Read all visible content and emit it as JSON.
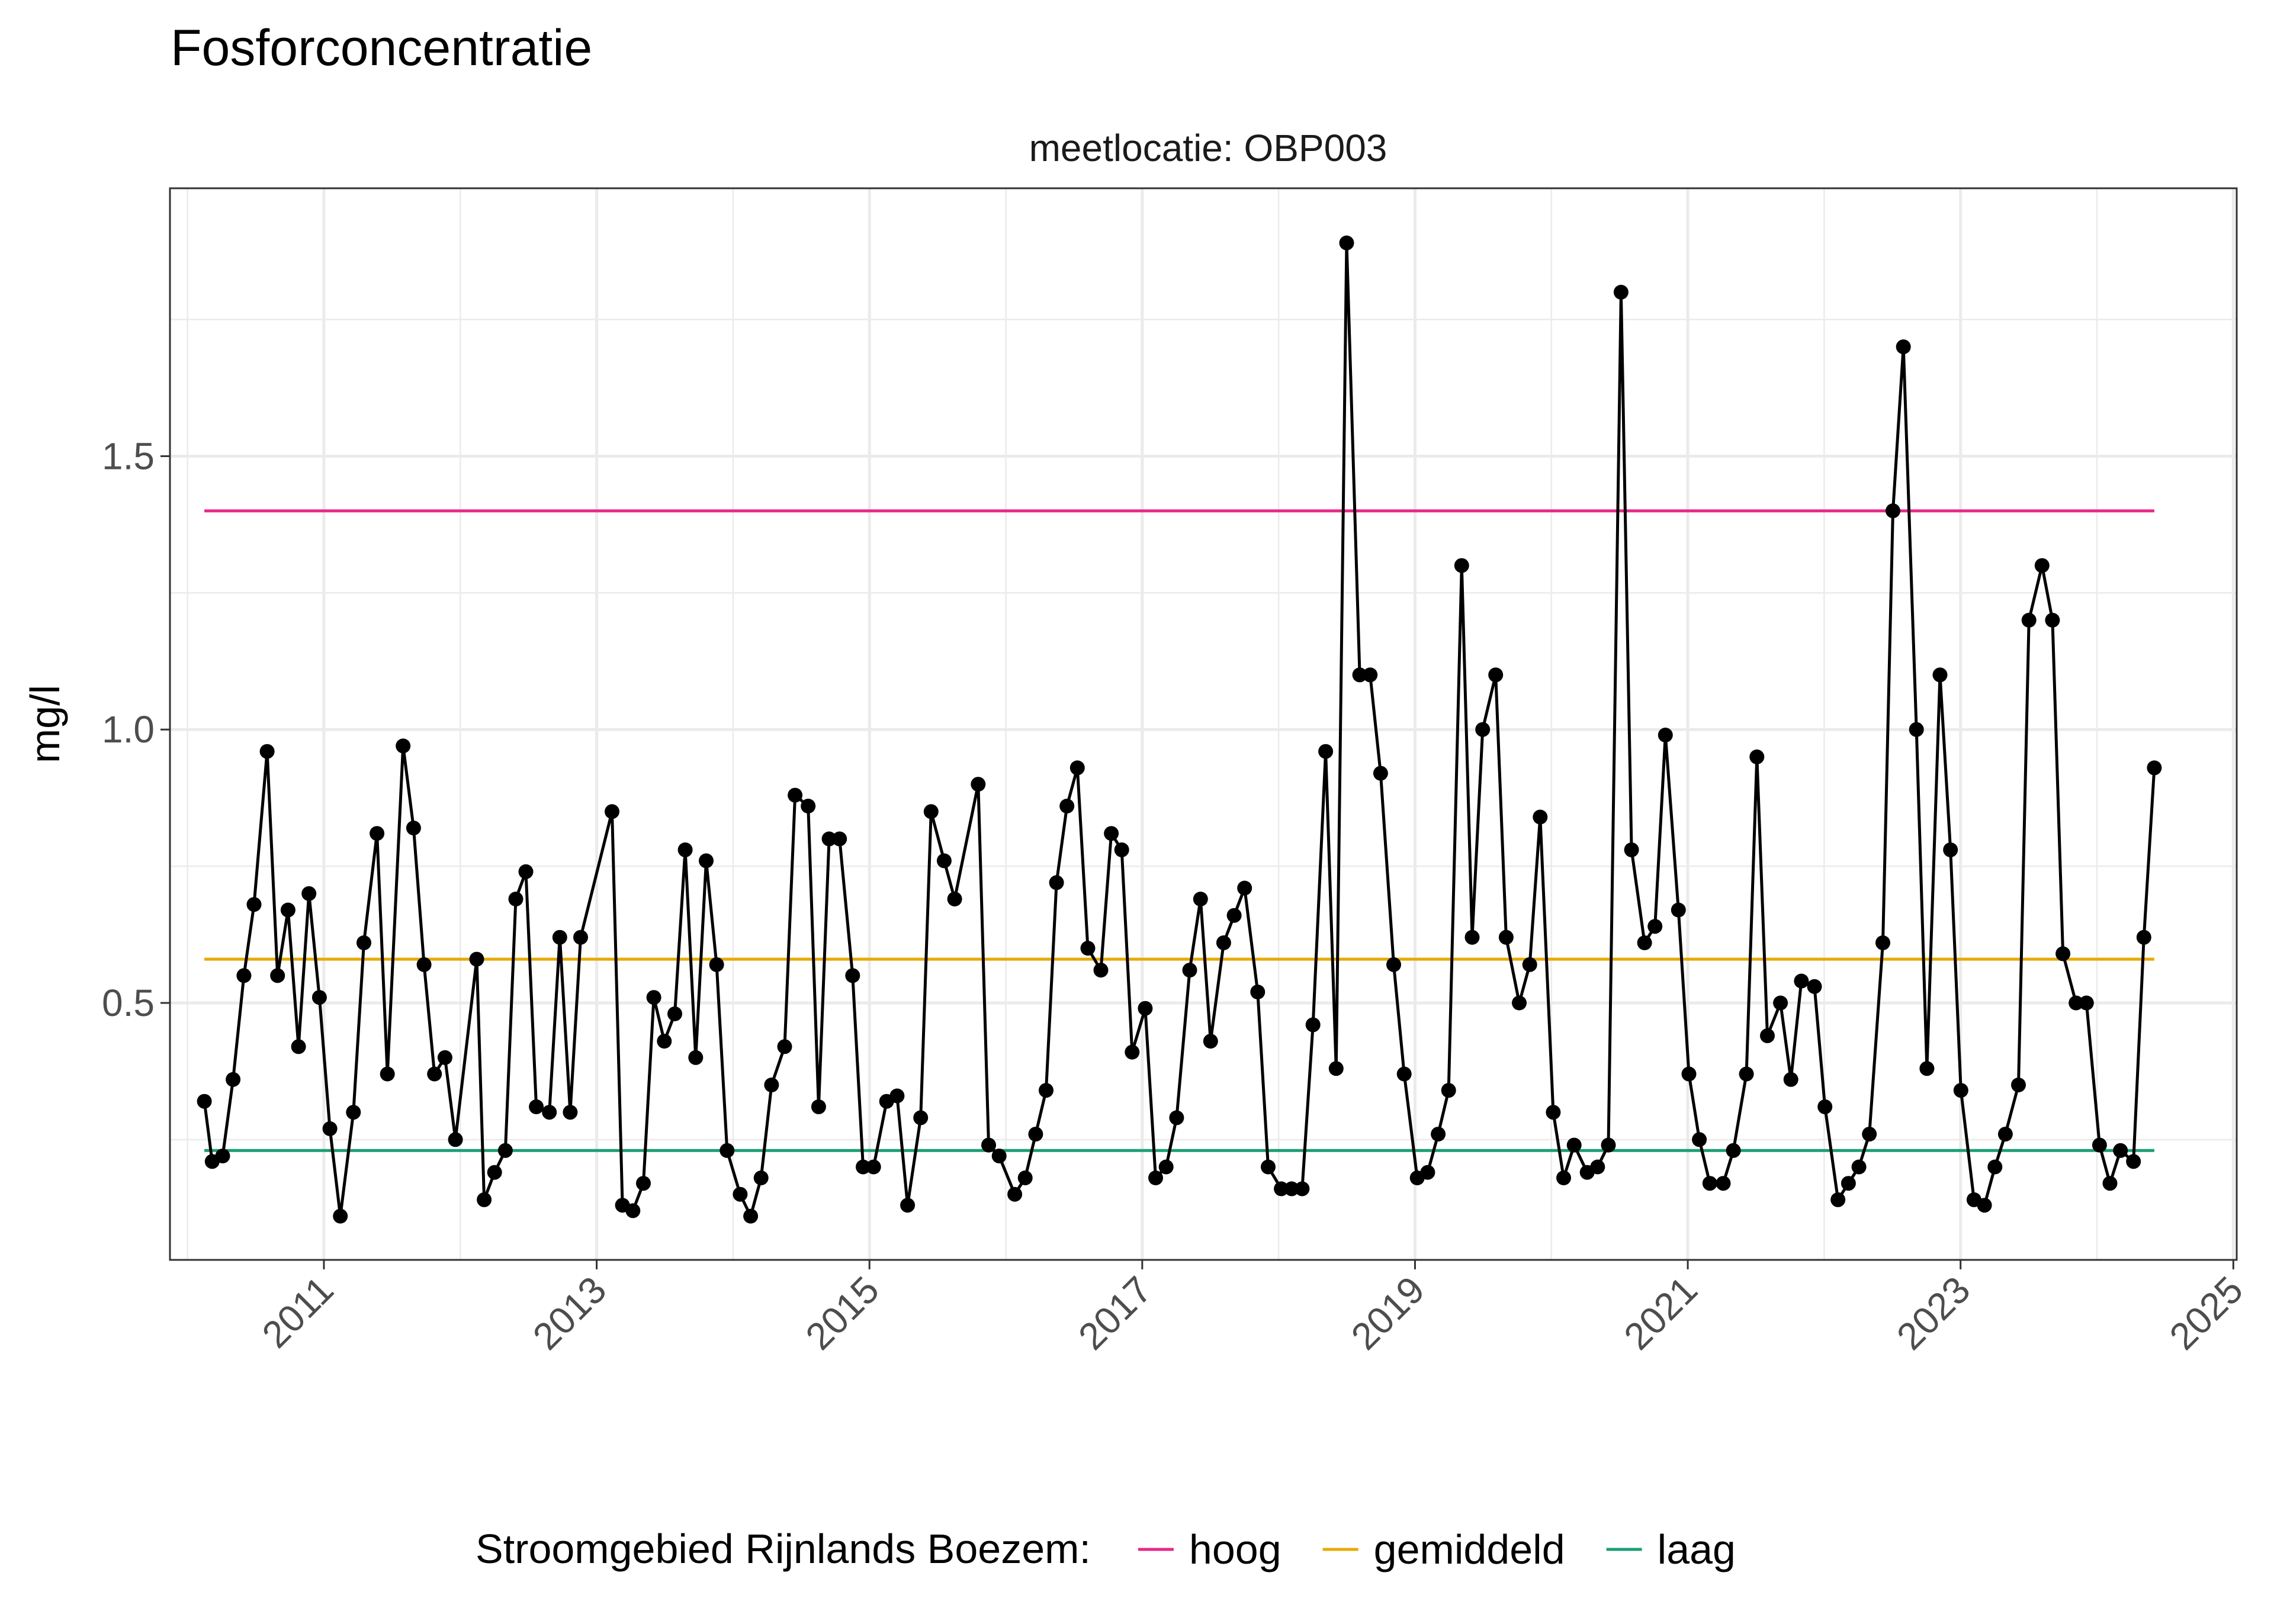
{
  "chart_data": {
    "type": "line",
    "title": "Fosforconcentratie",
    "facet_label": "meetlocatie: OBP003",
    "ylabel": "mg/l",
    "xlabel": "",
    "x_ticks": [
      "2011",
      "2013",
      "2015",
      "2017",
      "2019",
      "2021",
      "2023",
      "2025"
    ],
    "y_ticks": [
      "0.5",
      "1.0",
      "1.5"
    ],
    "xlim": [
      "2009-11-15",
      "2025-01-10"
    ],
    "ylim": [
      0.03,
      1.99
    ],
    "grid": true,
    "legend_position": "bottom",
    "series": [
      {
        "values": [
          [
            "2010-02-15",
            0.32
          ],
          [
            "2010-03-08",
            0.21
          ],
          [
            "2010-04-05",
            0.22
          ],
          [
            "2010-05-03",
            0.36
          ],
          [
            "2010-06-01",
            0.55
          ],
          [
            "2010-06-28",
            0.68
          ],
          [
            "2010-08-02",
            0.96
          ],
          [
            "2010-08-30",
            0.55
          ],
          [
            "2010-09-27",
            0.67
          ],
          [
            "2010-10-25",
            0.42
          ],
          [
            "2010-11-22",
            0.7
          ],
          [
            "2010-12-20",
            0.51
          ],
          [
            "2011-01-17",
            0.27
          ],
          [
            "2011-02-14",
            0.11
          ],
          [
            "2011-03-21",
            0.3
          ],
          [
            "2011-04-18",
            0.61
          ],
          [
            "2011-05-23",
            0.81
          ],
          [
            "2011-06-20",
            0.37
          ],
          [
            "2011-08-01",
            0.97
          ],
          [
            "2011-08-29",
            0.82
          ],
          [
            "2011-09-26",
            0.57
          ],
          [
            "2011-10-24",
            0.37
          ],
          [
            "2011-11-21",
            0.4
          ],
          [
            "2011-12-19",
            0.25
          ],
          [
            "2012-02-14",
            0.58
          ],
          [
            "2012-03-05",
            0.14
          ],
          [
            "2012-04-02",
            0.19
          ],
          [
            "2012-05-01",
            0.23
          ],
          [
            "2012-05-29",
            0.69
          ],
          [
            "2012-06-25",
            0.74
          ],
          [
            "2012-07-23",
            0.31
          ],
          [
            "2012-08-27",
            0.3
          ],
          [
            "2012-09-24",
            0.62
          ],
          [
            "2012-10-22",
            0.3
          ],
          [
            "2012-11-19",
            0.62
          ],
          [
            "2013-02-11",
            0.85
          ],
          [
            "2013-03-11",
            0.13
          ],
          [
            "2013-04-08",
            0.12
          ],
          [
            "2013-05-06",
            0.17
          ],
          [
            "2013-06-03",
            0.51
          ],
          [
            "2013-07-01",
            0.43
          ],
          [
            "2013-07-29",
            0.48
          ],
          [
            "2013-08-26",
            0.78
          ],
          [
            "2013-09-23",
            0.4
          ],
          [
            "2013-10-21",
            0.76
          ],
          [
            "2013-11-18",
            0.57
          ],
          [
            "2013-12-16",
            0.23
          ],
          [
            "2014-01-20",
            0.15
          ],
          [
            "2014-02-17",
            0.11
          ],
          [
            "2014-03-17",
            0.18
          ],
          [
            "2014-04-14",
            0.35
          ],
          [
            "2014-05-19",
            0.42
          ],
          [
            "2014-06-16",
            0.88
          ],
          [
            "2014-07-21",
            0.86
          ],
          [
            "2014-08-18",
            0.31
          ],
          [
            "2014-09-15",
            0.8
          ],
          [
            "2014-10-13",
            0.8
          ],
          [
            "2014-11-17",
            0.55
          ],
          [
            "2014-12-15",
            0.2
          ],
          [
            "2015-01-12",
            0.2
          ],
          [
            "2015-02-16",
            0.32
          ],
          [
            "2015-03-16",
            0.33
          ],
          [
            "2015-04-13",
            0.13
          ],
          [
            "2015-05-18",
            0.29
          ],
          [
            "2015-06-15",
            0.85
          ],
          [
            "2015-07-20",
            0.76
          ],
          [
            "2015-08-17",
            0.69
          ],
          [
            "2015-10-19",
            0.9
          ],
          [
            "2015-11-16",
            0.24
          ],
          [
            "2015-12-14",
            0.22
          ],
          [
            "2016-01-25",
            0.15
          ],
          [
            "2016-02-22",
            0.18
          ],
          [
            "2016-03-21",
            0.26
          ],
          [
            "2016-04-18",
            0.34
          ],
          [
            "2016-05-16",
            0.72
          ],
          [
            "2016-06-13",
            0.86
          ],
          [
            "2016-07-11",
            0.93
          ],
          [
            "2016-08-08",
            0.6
          ],
          [
            "2016-09-12",
            0.56
          ],
          [
            "2016-10-10",
            0.81
          ],
          [
            "2016-11-07",
            0.78
          ],
          [
            "2016-12-05",
            0.41
          ],
          [
            "2017-01-09",
            0.49
          ],
          [
            "2017-02-06",
            0.18
          ],
          [
            "2017-03-06",
            0.2
          ],
          [
            "2017-04-03",
            0.29
          ],
          [
            "2017-05-08",
            0.56
          ],
          [
            "2017-06-06",
            0.69
          ],
          [
            "2017-07-03",
            0.43
          ],
          [
            "2017-08-07",
            0.61
          ],
          [
            "2017-09-04",
            0.66
          ],
          [
            "2017-10-02",
            0.71
          ],
          [
            "2017-11-06",
            0.52
          ],
          [
            "2017-12-04",
            0.2
          ],
          [
            "2018-01-08",
            0.16
          ],
          [
            "2018-02-05",
            0.16
          ],
          [
            "2018-03-05",
            0.16
          ],
          [
            "2018-04-03",
            0.46
          ],
          [
            "2018-05-07",
            0.96
          ],
          [
            "2018-06-04",
            0.38
          ],
          [
            "2018-07-02",
            1.89
          ],
          [
            "2018-08-06",
            1.1
          ],
          [
            "2018-09-03",
            1.1
          ],
          [
            "2018-10-01",
            0.92
          ],
          [
            "2018-11-05",
            0.57
          ],
          [
            "2018-12-03",
            0.37
          ],
          [
            "2019-01-07",
            0.18
          ],
          [
            "2019-02-04",
            0.19
          ],
          [
            "2019-03-04",
            0.26
          ],
          [
            "2019-04-01",
            0.34
          ],
          [
            "2019-05-06",
            1.3
          ],
          [
            "2019-06-03",
            0.62
          ],
          [
            "2019-07-01",
            1.0
          ],
          [
            "2019-08-05",
            1.1
          ],
          [
            "2019-09-02",
            0.62
          ],
          [
            "2019-10-07",
            0.5
          ],
          [
            "2019-11-04",
            0.57
          ],
          [
            "2019-12-02",
            0.84
          ],
          [
            "2020-01-06",
            0.3
          ],
          [
            "2020-02-03",
            0.18
          ],
          [
            "2020-03-02",
            0.24
          ],
          [
            "2020-04-06",
            0.19
          ],
          [
            "2020-05-04",
            0.2
          ],
          [
            "2020-06-02",
            0.24
          ],
          [
            "2020-07-06",
            1.8
          ],
          [
            "2020-08-03",
            0.78
          ],
          [
            "2020-09-07",
            0.61
          ],
          [
            "2020-10-05",
            0.64
          ],
          [
            "2020-11-02",
            0.99
          ],
          [
            "2020-12-07",
            0.67
          ],
          [
            "2021-01-04",
            0.37
          ],
          [
            "2021-02-01",
            0.25
          ],
          [
            "2021-03-01",
            0.17
          ],
          [
            "2021-04-06",
            0.17
          ],
          [
            "2021-05-03",
            0.23
          ],
          [
            "2021-06-07",
            0.37
          ],
          [
            "2021-07-05",
            0.95
          ],
          [
            "2021-08-02",
            0.44
          ],
          [
            "2021-09-06",
            0.5
          ],
          [
            "2021-10-04",
            0.36
          ],
          [
            "2021-11-01",
            0.54
          ],
          [
            "2021-12-06",
            0.53
          ],
          [
            "2022-01-03",
            0.31
          ],
          [
            "2022-02-07",
            0.14
          ],
          [
            "2022-03-07",
            0.17
          ],
          [
            "2022-04-04",
            0.2
          ],
          [
            "2022-05-02",
            0.26
          ],
          [
            "2022-06-07",
            0.61
          ],
          [
            "2022-07-04",
            1.4
          ],
          [
            "2022-08-01",
            1.7
          ],
          [
            "2022-09-05",
            1.0
          ],
          [
            "2022-10-03",
            0.38
          ],
          [
            "2022-11-07",
            1.1
          ],
          [
            "2022-12-05",
            0.78
          ],
          [
            "2023-01-02",
            0.34
          ],
          [
            "2023-02-06",
            0.14
          ],
          [
            "2023-03-06",
            0.13
          ],
          [
            "2023-04-03",
            0.2
          ],
          [
            "2023-05-01",
            0.26
          ],
          [
            "2023-06-05",
            0.35
          ],
          [
            "2023-07-03",
            1.2
          ],
          [
            "2023-08-07",
            1.3
          ],
          [
            "2023-09-04",
            1.2
          ],
          [
            "2023-10-02",
            0.59
          ],
          [
            "2023-11-06",
            0.5
          ],
          [
            "2023-12-04",
            0.5
          ],
          [
            "2024-01-08",
            0.24
          ],
          [
            "2024-02-05",
            0.17
          ],
          [
            "2024-03-04",
            0.23
          ],
          [
            "2024-04-08",
            0.21
          ],
          [
            "2024-05-06",
            0.62
          ],
          [
            "2024-06-03",
            0.93
          ]
        ],
        "color": "#000000"
      }
    ],
    "reference_lines": [
      {
        "name": "hoog",
        "value": 1.4,
        "color": "#E7298A",
        "x_from": "2010-02-15",
        "x_to": "2024-06-03"
      },
      {
        "name": "gemiddeld",
        "value": 0.58,
        "color": "#E6AB02",
        "x_from": "2010-02-15",
        "x_to": "2024-06-03"
      },
      {
        "name": "laag",
        "value": 0.23,
        "color": "#1B9E77",
        "x_from": "2010-02-15",
        "x_to": "2024-06-03"
      }
    ],
    "legend": {
      "title": "Stroomgebied Rijnlands Boezem:",
      "items": [
        "hoog",
        "gemiddeld",
        "laag"
      ]
    }
  }
}
